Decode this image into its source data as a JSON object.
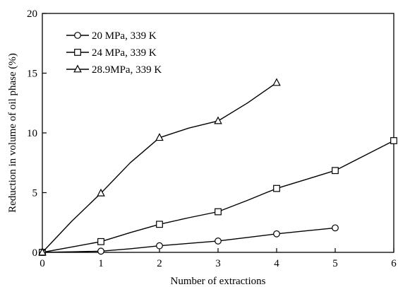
{
  "chart_data": {
    "type": "line",
    "title": "",
    "xlabel": "Number of extractions",
    "ylabel": "Reduction in volume of oil phase (%)",
    "xlim": [
      0,
      6
    ],
    "ylim": [
      0,
      20
    ],
    "xticks": [
      "0",
      "1",
      "2",
      "3",
      "4",
      "5",
      "6"
    ],
    "yticks": [
      "0",
      "5",
      "10",
      "15",
      "20"
    ],
    "grid": false,
    "legend_position": "top-left",
    "series": [
      {
        "name": "20 MPa, 339 K",
        "marker": "circle",
        "x": [
          0,
          1,
          2,
          3,
          4,
          5
        ],
        "y": [
          0,
          0.1,
          0.55,
          0.95,
          1.55,
          2.05
        ],
        "curve": [
          [
            0,
            0
          ],
          [
            0.5,
            0.05
          ],
          [
            1,
            0.1
          ],
          [
            1.5,
            0.3
          ],
          [
            2,
            0.55
          ],
          [
            2.5,
            0.75
          ],
          [
            3,
            0.95
          ],
          [
            3.5,
            1.25
          ],
          [
            4,
            1.55
          ],
          [
            4.5,
            1.8
          ],
          [
            5,
            2.05
          ]
        ]
      },
      {
        "name": "24 MPa, 339 K",
        "marker": "square",
        "x": [
          0,
          1,
          2,
          3,
          4,
          5,
          6
        ],
        "y": [
          0,
          0.9,
          2.35,
          3.4,
          5.35,
          6.85,
          9.35
        ],
        "curve": [
          [
            0,
            0
          ],
          [
            0.5,
            0.45
          ],
          [
            1,
            0.9
          ],
          [
            1.5,
            1.65
          ],
          [
            2,
            2.35
          ],
          [
            2.5,
            2.9
          ],
          [
            3,
            3.4
          ],
          [
            3.5,
            4.35
          ],
          [
            4,
            5.35
          ],
          [
            4.5,
            6.1
          ],
          [
            5,
            6.85
          ],
          [
            5.5,
            8.1
          ],
          [
            6,
            9.35
          ]
        ]
      },
      {
        "name": "28.9MPa, 339 K",
        "marker": "triangle",
        "x": [
          0,
          1,
          2,
          3,
          4
        ],
        "y": [
          0,
          4.95,
          9.6,
          11.0,
          14.2
        ],
        "curve": [
          [
            0,
            0
          ],
          [
            0.5,
            2.6
          ],
          [
            1,
            4.95
          ],
          [
            1.5,
            7.5
          ],
          [
            2,
            9.6
          ],
          [
            2.5,
            10.4
          ],
          [
            3,
            11.0
          ],
          [
            3.5,
            12.5
          ],
          [
            4,
            14.2
          ]
        ]
      }
    ]
  }
}
